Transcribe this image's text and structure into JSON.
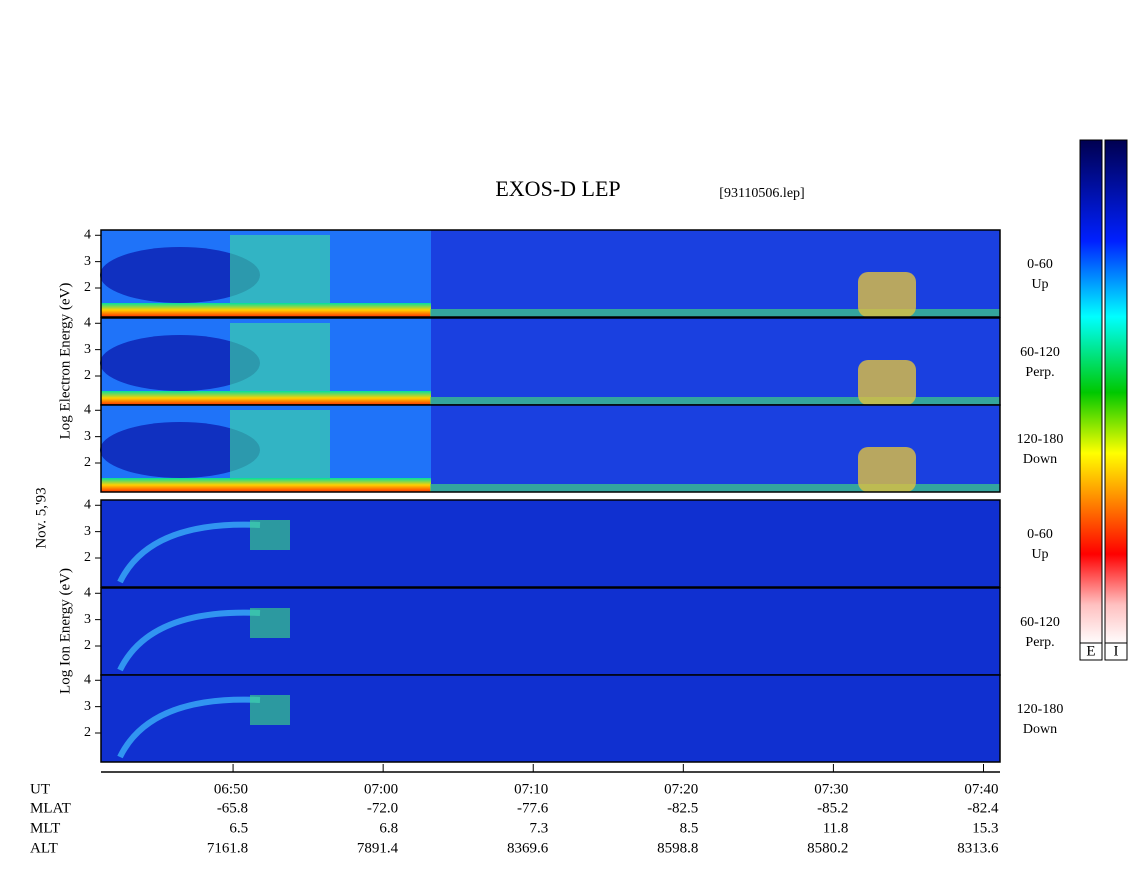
{
  "chart_data": {
    "type": "spectrogram",
    "title": "EXOS-D LEP",
    "file": "[93110506.lep]",
    "date": "Nov. 5,'93",
    "group_labels": [
      "Log Electron Energy (eV)",
      "Log Ion Energy (eV)"
    ],
    "panels": [
      {
        "group": 0,
        "angle": "0-60",
        "direction": "Up",
        "ylim": [
          0.9,
          4.2
        ],
        "yticks": [
          2,
          3,
          4
        ]
      },
      {
        "group": 0,
        "angle": "60-120",
        "direction": "Perp.",
        "ylim": [
          0.9,
          4.2
        ],
        "yticks": [
          2,
          3,
          4
        ]
      },
      {
        "group": 0,
        "angle": "120-180",
        "direction": "Down",
        "ylim": [
          0.9,
          4.2
        ],
        "yticks": [
          2,
          3,
          4
        ]
      },
      {
        "group": 1,
        "angle": "0-60",
        "direction": "Up",
        "ylim": [
          0.9,
          4.2
        ],
        "yticks": [
          2,
          3,
          4
        ]
      },
      {
        "group": 1,
        "angle": "60-120",
        "direction": "Perp.",
        "ylim": [
          0.9,
          4.2
        ],
        "yticks": [
          2,
          3,
          4
        ]
      },
      {
        "group": 1,
        "angle": "120-180",
        "direction": "Down",
        "ylim": [
          0.9,
          4.2
        ],
        "yticks": [
          2,
          3,
          4
        ]
      }
    ],
    "xlim": [
      401.2,
      461.1
    ],
    "xticks": [
      {
        "value": 410,
        "label": "06:50"
      },
      {
        "value": 420,
        "label": "07:00"
      },
      {
        "value": 430,
        "label": "07:10"
      },
      {
        "value": 440,
        "label": "07:20"
      },
      {
        "value": 450,
        "label": "07:30"
      },
      {
        "value": 460,
        "label": "07:40"
      }
    ],
    "x_label": "UT",
    "orbit_rows": [
      {
        "name": "MLAT",
        "values": [
          "-65.8",
          "-72.0",
          "-77.6",
          "-82.5",
          "-85.2",
          "-82.4"
        ]
      },
      {
        "name": "MLT",
        "values": [
          "6.5",
          "6.8",
          "7.3",
          "8.5",
          "11.8",
          "15.3"
        ]
      },
      {
        "name": "ALT",
        "values": [
          "7161.8",
          "7891.4",
          "8369.6",
          "8598.8",
          "8580.2",
          "8313.6"
        ]
      }
    ],
    "colorbar_labels": [
      "E",
      "I"
    ]
  }
}
